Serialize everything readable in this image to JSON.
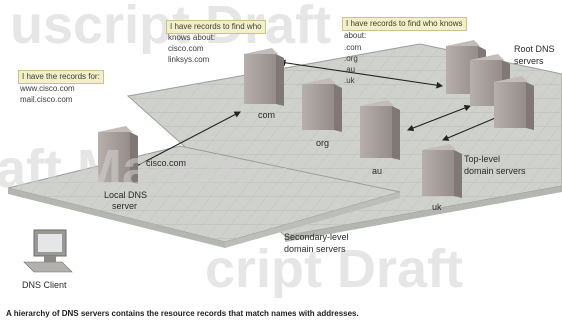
{
  "watermark": {
    "line1": "uscript Draft",
    "line2": "aft Manus",
    "line3": "cript Draft"
  },
  "callouts": {
    "local_records": {
      "heading": "I have the records for:",
      "lines": [
        "www.cisco.com",
        "mail.cisco.com"
      ]
    },
    "com_server": {
      "heading": "I have records to find who",
      "lines": [
        "knows about:",
        "cisco.com",
        "linksys.com"
      ]
    },
    "root_server": {
      "heading": "I have records to find who knows",
      "lines": [
        "about:",
        ".com",
        ".org",
        ".au",
        ".uk"
      ]
    }
  },
  "labels": {
    "root": [
      "Root DNS",
      "servers"
    ],
    "com": "com",
    "org": "org",
    "au": "au",
    "uk": "uk",
    "cisco": "cisco.com",
    "local_dns": [
      "Local DNS",
      "server"
    ],
    "top_level": [
      "Top-level",
      "domain servers"
    ],
    "secondary": [
      "Secondary-level",
      "domain servers"
    ],
    "client": "DNS Client"
  },
  "caption": "A hierarchy of DNS servers contains the resource records that match names with addresses.",
  "colors": {
    "platform": "#cfd1cc",
    "grid": "#b7b9b4",
    "server_body": "#a29a96",
    "callout_fill": "#f2f0c9",
    "arrow": "#222222"
  }
}
